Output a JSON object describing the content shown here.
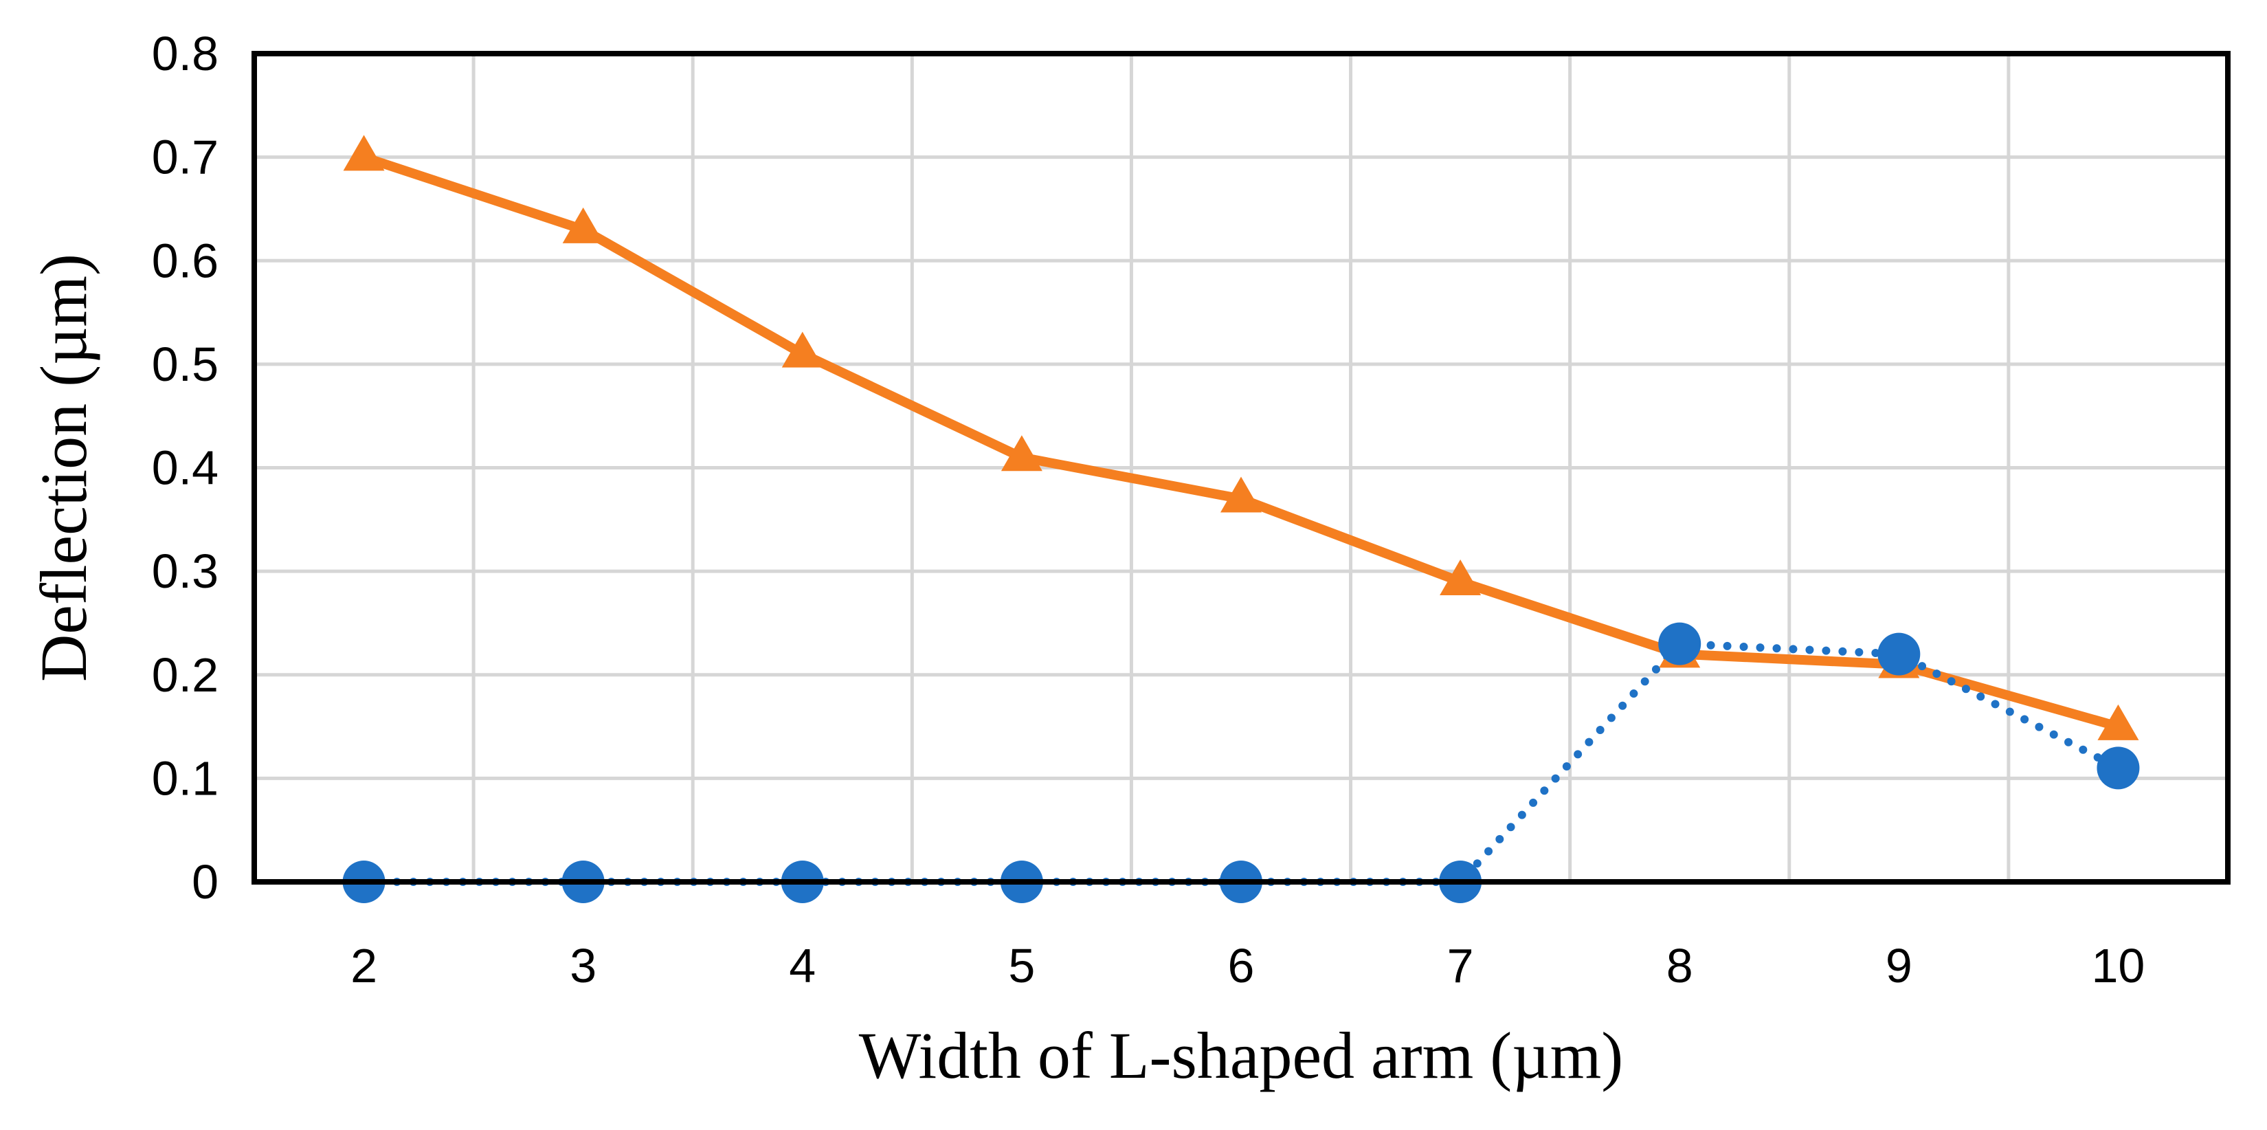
{
  "chart_data": {
    "type": "line",
    "xlabel": "Width of L-shaped arm (µm)",
    "ylabel": "Deflection (µm)",
    "categories": [
      "2",
      "3",
      "4",
      "5",
      "6",
      "7",
      "8",
      "9",
      "10"
    ],
    "x": [
      2,
      3,
      4,
      5,
      6,
      7,
      8,
      9,
      10
    ],
    "ylim": [
      0,
      0.8
    ],
    "yticks": [
      "0",
      "0.1",
      "0.2",
      "0.3",
      "0.4",
      "0.5",
      "0.6",
      "0.7",
      "0.8"
    ],
    "grid": true,
    "series": [
      {
        "marker": "triangle",
        "line_style": "solid",
        "color": "#F57F20",
        "values": [
          0.7,
          0.63,
          0.51,
          0.41,
          0.37,
          0.29,
          0.22,
          0.21,
          0.15
        ]
      },
      {
        "marker": "circle",
        "line_style": "dotted",
        "color": "#1F72C6",
        "values": [
          0,
          0,
          0,
          0,
          0,
          0,
          0.23,
          0.22,
          0.11
        ]
      }
    ]
  }
}
